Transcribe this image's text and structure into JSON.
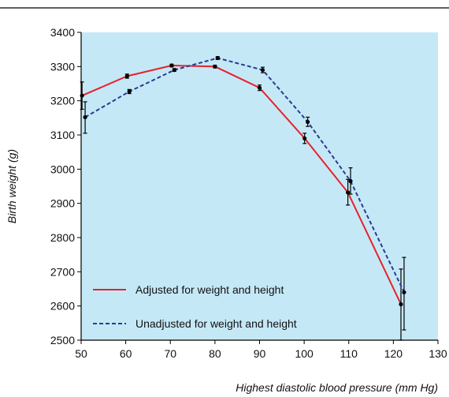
{
  "chart_data": {
    "type": "line",
    "xlabel": "Highest diastolic blood pressure (mm Hg)",
    "ylabel": "Birth weight (g)",
    "xlim": [
      50,
      130
    ],
    "ylim": [
      2500,
      3400
    ],
    "x_ticks": [
      50,
      60,
      70,
      80,
      90,
      100,
      110,
      120,
      130
    ],
    "y_ticks": [
      2500,
      2600,
      2700,
      2800,
      2900,
      3000,
      3100,
      3200,
      3300,
      3400
    ],
    "grid": false,
    "legend_position": "bottom-left",
    "colors": {
      "plot_background": "#c5e8f7",
      "adjusted": "#e8212a",
      "unadjusted": "#2b3b8f"
    },
    "series": [
      {
        "name": "Adjusted for weight and height",
        "line_style": "solid",
        "points": [
          {
            "x": 50.2,
            "y": 3215,
            "err_low": 3175,
            "err_high": 3255
          },
          {
            "x": 60.3,
            "y": 3272,
            "err_low": 3266,
            "err_high": 3278
          },
          {
            "x": 70.3,
            "y": 3303,
            "err_low": 3299,
            "err_high": 3307
          },
          {
            "x": 80.0,
            "y": 3300,
            "err_low": 3296,
            "err_high": 3304
          },
          {
            "x": 90.0,
            "y": 3238,
            "err_low": 3230,
            "err_high": 3246
          },
          {
            "x": 100.1,
            "y": 3090,
            "err_low": 3075,
            "err_high": 3105
          },
          {
            "x": 109.8,
            "y": 2932,
            "err_low": 2895,
            "err_high": 2970
          },
          {
            "x": 121.7,
            "y": 2605,
            "err_low": 2500,
            "err_high": 2708
          }
        ]
      },
      {
        "name": "Unadjusted for weight and height",
        "line_style": "dashed",
        "points": [
          {
            "x": 50.9,
            "y": 3152,
            "err_low": 3105,
            "err_high": 3197
          },
          {
            "x": 60.8,
            "y": 3227,
            "err_low": 3221,
            "err_high": 3233
          },
          {
            "x": 70.9,
            "y": 3290,
            "err_low": 3286,
            "err_high": 3294
          },
          {
            "x": 80.6,
            "y": 3325,
            "err_low": 3321,
            "err_high": 3329
          },
          {
            "x": 90.7,
            "y": 3290,
            "err_low": 3282,
            "err_high": 3298
          },
          {
            "x": 100.8,
            "y": 3138,
            "err_low": 3125,
            "err_high": 3152
          },
          {
            "x": 110.4,
            "y": 2965,
            "err_low": 2927,
            "err_high": 3004
          },
          {
            "x": 122.4,
            "y": 2640,
            "err_low": 2530,
            "err_high": 2742
          }
        ]
      }
    ]
  }
}
